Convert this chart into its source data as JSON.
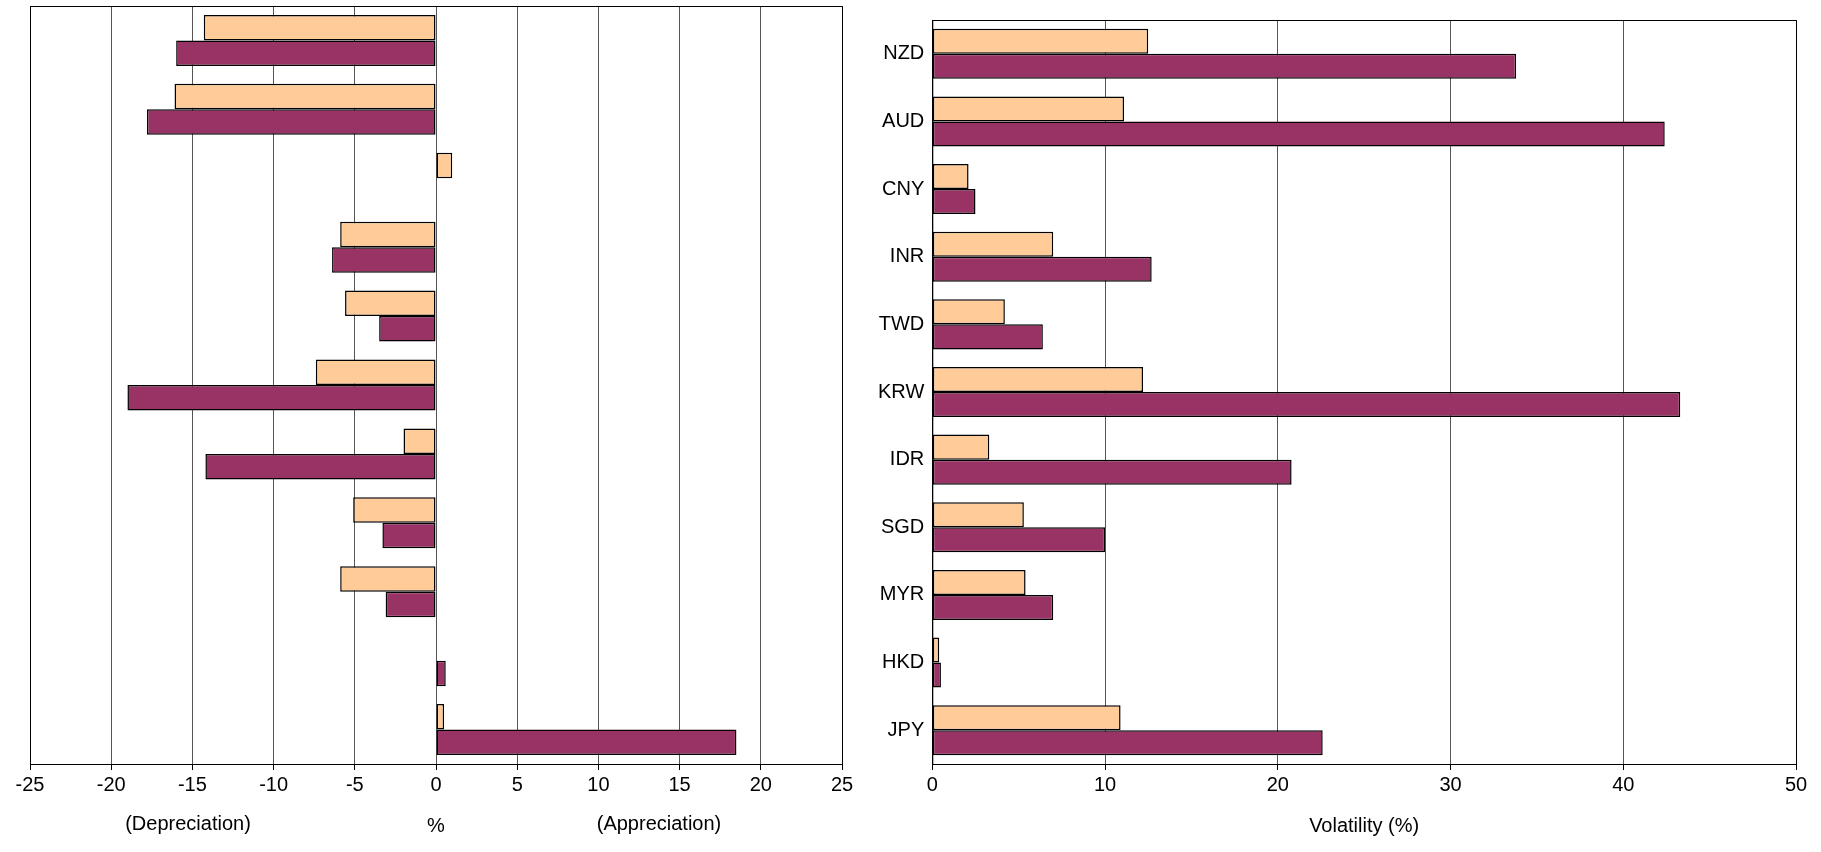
{
  "chart_data": [
    {
      "type": "bar",
      "orientation": "horizontal",
      "xlabel": "%",
      "annotations": [
        "(Depreciation)",
        "(Appreciation)"
      ],
      "categories": [
        null,
        null,
        null,
        null,
        null,
        null,
        null,
        null,
        null,
        null,
        null
      ],
      "series": [
        {
          "color": "#ffcc99",
          "values": [
            -14.3,
            -16.1,
            1.0,
            -5.9,
            -5.6,
            -7.4,
            -2.0,
            -5.1,
            -5.9,
            0,
            0.5
          ]
        },
        {
          "color": "#993366",
          "values": [
            -16.0,
            -17.8,
            0,
            -6.4,
            -3.5,
            -19.0,
            -14.2,
            -3.3,
            -3.1,
            0.6,
            18.5
          ]
        }
      ],
      "xlim": [
        -25,
        25
      ],
      "xticks": [
        -25,
        -20,
        -15,
        -10,
        -5,
        0,
        5,
        10,
        15,
        20,
        25
      ],
      "grid": "x",
      "legend": false,
      "tick_labels": "x"
    },
    {
      "type": "bar",
      "orientation": "horizontal",
      "xlabel": "Volatility (%)",
      "categories": [
        "NZD",
        "AUD",
        "CNY",
        "INR",
        "TWD",
        "KRW",
        "IDR",
        "SGD",
        "MYR",
        "HKD",
        "JPY"
      ],
      "series": [
        {
          "color": "#ffcc99",
          "values": [
            12.5,
            11.1,
            2.1,
            7.0,
            4.2,
            12.2,
            3.3,
            5.3,
            5.4,
            0.4,
            10.9
          ]
        },
        {
          "color": "#993366",
          "values": [
            33.8,
            42.4,
            2.5,
            12.7,
            6.4,
            43.3,
            20.8,
            10.0,
            7.0,
            0.5,
            22.6
          ]
        }
      ],
      "xlim": [
        0,
        50
      ],
      "xticks": [
        0,
        10,
        20,
        30,
        40,
        50
      ],
      "grid": "x",
      "legend": false
    }
  ]
}
